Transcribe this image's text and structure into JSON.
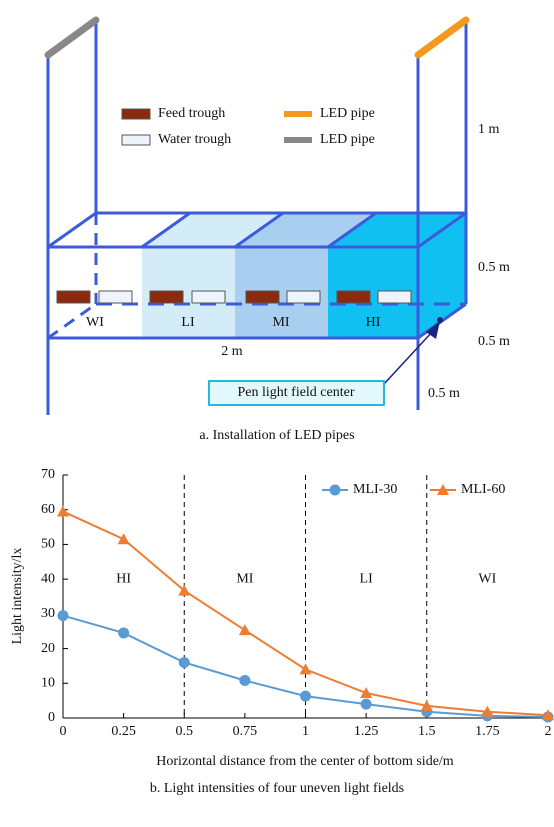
{
  "panel_a": {
    "legend": [
      {
        "label": "Feed trough"
      },
      {
        "label": "LED pipe"
      },
      {
        "label": "Water trough"
      },
      {
        "label": "LED pipe"
      }
    ],
    "dimensions": [
      "1 m",
      "0.5 m",
      "0.5 m",
      "0.5 m",
      "2 m"
    ],
    "zones": [
      "WI",
      "LI",
      "MI",
      "HI"
    ],
    "callout": "Pen light field center",
    "caption": "a. Installation of LED pipes"
  },
  "chart_data": {
    "type": "line",
    "caption": "b. Light intensities of four uneven light fields",
    "x_label": "Horizontal distance from the center of bottom side/m",
    "y_label": "Light intensity/lx",
    "x": [
      0,
      0.25,
      0.5,
      0.75,
      1,
      1.25,
      1.5,
      1.75,
      2
    ],
    "series": [
      {
        "name": "MLI-30",
        "color": "#5b9bd5",
        "marker": "circle",
        "values": [
          29.5,
          24.5,
          16,
          10.8,
          6.3,
          4,
          1.8,
          0.6,
          0.3
        ]
      },
      {
        "name": "MLI-60",
        "color": "#ed7d31",
        "marker": "triangle",
        "values": [
          59.5,
          51.5,
          36.7,
          25.3,
          14,
          7.2,
          3.5,
          1.8,
          0.8
        ]
      }
    ],
    "xlim": [
      0,
      2
    ],
    "ylim": [
      0,
      70
    ],
    "xticks": [
      0,
      0.25,
      0.5,
      0.75,
      1,
      1.25,
      1.5,
      1.75,
      2
    ],
    "yticks": [
      0,
      10,
      20,
      30,
      40,
      50,
      60,
      70
    ],
    "dividers": [
      0.5,
      1,
      1.5
    ],
    "region_labels": [
      "HI",
      "MI",
      "LI",
      "WI"
    ],
    "legend_position": "upper right"
  }
}
